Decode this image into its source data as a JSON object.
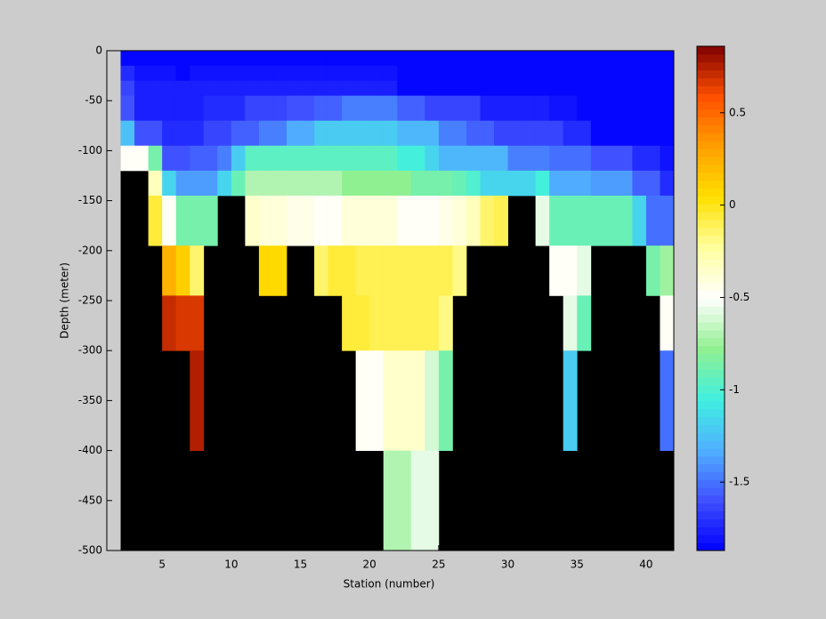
{
  "chart_data": {
    "type": "heatmap",
    "xlabel": "Station (number)",
    "ylabel": "Depth (meter)",
    "x": [
      2,
      3,
      4,
      5,
      6,
      7,
      8,
      9,
      10,
      11,
      12,
      13,
      14,
      15,
      16,
      17,
      18,
      19,
      20,
      21,
      22,
      23,
      24,
      25,
      26,
      27,
      28,
      29,
      30,
      31,
      32,
      33,
      34,
      35,
      36,
      37,
      38,
      39,
      40,
      41,
      42
    ],
    "y": [
      0,
      -15,
      -30,
      -45,
      -70,
      -95,
      -120,
      -145,
      -195,
      -245,
      -300,
      -400,
      -500
    ],
    "values": [
      [
        -1.85,
        -1.85,
        -1.85,
        -1.85,
        -1.85,
        -1.85,
        -1.85,
        -1.85,
        -1.85,
        -1.85,
        -1.85,
        -1.85,
        -1.85,
        -1.85,
        -1.85,
        -1.85,
        -1.85,
        -1.85,
        -1.85,
        -1.85,
        -1.85,
        -1.85,
        -1.85,
        -1.85,
        -1.85,
        -1.85,
        -1.85,
        -1.85,
        -1.85,
        -1.85,
        -1.85,
        -1.85,
        -1.85,
        -1.85,
        -1.85,
        -1.85,
        -1.85,
        -1.85,
        -1.85,
        -1.85
      ],
      [
        -1.7,
        -1.8,
        -1.8,
        -1.8,
        -1.85,
        -1.8,
        -1.8,
        -1.8,
        -1.8,
        -1.8,
        -1.8,
        -1.8,
        -1.8,
        -1.8,
        -1.8,
        -1.8,
        -1.8,
        -1.8,
        -1.8,
        -1.8,
        -1.85,
        -1.85,
        -1.85,
        -1.85,
        -1.85,
        -1.85,
        -1.85,
        -1.85,
        -1.85,
        -1.85,
        -1.85,
        -1.85,
        -1.85,
        -1.85,
        -1.85,
        -1.85,
        -1.85,
        -1.85,
        -1.85,
        -1.85
      ],
      [
        -1.65,
        -1.78,
        -1.78,
        -1.78,
        -1.78,
        -1.78,
        -1.75,
        -1.75,
        -1.75,
        -1.75,
        -1.75,
        -1.75,
        -1.75,
        -1.75,
        -1.75,
        -1.75,
        -1.75,
        -1.75,
        -1.75,
        -1.75,
        -1.85,
        -1.85,
        -1.85,
        -1.85,
        -1.85,
        -1.85,
        -1.85,
        -1.85,
        -1.85,
        -1.85,
        -1.85,
        -1.85,
        -1.85,
        -1.85,
        -1.85,
        -1.85,
        -1.85,
        -1.85,
        -1.85,
        -1.85
      ],
      [
        -1.6,
        -1.75,
        -1.75,
        -1.75,
        -1.75,
        -1.75,
        -1.7,
        -1.7,
        -1.7,
        -1.65,
        -1.65,
        -1.65,
        -1.6,
        -1.6,
        -1.55,
        -1.55,
        -1.45,
        -1.45,
        -1.45,
        -1.45,
        -1.55,
        -1.55,
        -1.65,
        -1.65,
        -1.65,
        -1.65,
        -1.75,
        -1.75,
        -1.75,
        -1.75,
        -1.75,
        -1.8,
        -1.8,
        -1.85,
        -1.85,
        -1.85,
        -1.85,
        -1.85,
        -1.85,
        -1.85
      ],
      [
        -1.25,
        -1.6,
        -1.6,
        -1.7,
        -1.7,
        -1.7,
        -1.65,
        -1.65,
        -1.55,
        -1.55,
        -1.45,
        -1.45,
        -1.35,
        -1.35,
        -1.2,
        -1.2,
        -1.2,
        -1.2,
        -1.2,
        -1.2,
        -1.3,
        -1.3,
        -1.3,
        -1.45,
        -1.45,
        -1.55,
        -1.55,
        -1.65,
        -1.65,
        -1.65,
        -1.65,
        -1.65,
        -1.7,
        -1.7,
        -1.85,
        -1.85,
        -1.85,
        -1.85,
        -1.85,
        -1.85
      ],
      [
        -0.5,
        -0.5,
        -0.85,
        -1.6,
        -1.6,
        -1.55,
        -1.55,
        -1.45,
        -1.2,
        -0.95,
        -0.95,
        -0.95,
        -0.95,
        -0.95,
        -0.95,
        -0.95,
        -0.95,
        -0.95,
        -0.95,
        -0.95,
        -1.05,
        -1.05,
        -1.15,
        -1.3,
        -1.3,
        -1.3,
        -1.3,
        -1.3,
        -1.45,
        -1.45,
        -1.45,
        -1.5,
        -1.5,
        -1.5,
        -1.6,
        -1.6,
        -1.6,
        -1.7,
        -1.7,
        -1.8
      ],
      [
        null,
        null,
        -0.3,
        -1.15,
        -1.4,
        -1.4,
        -1.4,
        -1.15,
        -0.9,
        -0.7,
        -0.7,
        -0.7,
        -0.7,
        -0.7,
        -0.7,
        -0.7,
        -0.8,
        -0.8,
        -0.8,
        -0.8,
        -0.8,
        -0.85,
        -0.85,
        -0.85,
        -0.9,
        -1.0,
        -1.15,
        -1.15,
        -1.15,
        -1.15,
        -1.05,
        -1.35,
        -1.35,
        -1.35,
        -1.4,
        -1.4,
        -1.4,
        -1.55,
        -1.55,
        -1.7
      ],
      [
        null,
        null,
        -0.05,
        -0.5,
        -0.85,
        -0.85,
        -0.85,
        null,
        null,
        -0.35,
        -0.4,
        -0.4,
        -0.45,
        -0.45,
        -0.5,
        -0.5,
        -0.4,
        -0.4,
        -0.4,
        -0.4,
        -0.5,
        -0.5,
        -0.5,
        -0.45,
        -0.4,
        -0.3,
        -0.15,
        -0.1,
        null,
        null,
        -0.55,
        -0.9,
        -0.9,
        -0.9,
        -0.9,
        -0.9,
        -0.9,
        -1.15,
        -1.5,
        -1.5
      ],
      [
        null,
        null,
        null,
        0.25,
        0.1,
        -0.15,
        null,
        null,
        null,
        null,
        0.05,
        0.05,
        null,
        null,
        -0.15,
        -0.05,
        -0.05,
        -0.1,
        -0.1,
        -0.1,
        -0.1,
        -0.1,
        -0.1,
        -0.1,
        -0.2,
        null,
        null,
        null,
        null,
        null,
        null,
        -0.5,
        -0.5,
        -0.55,
        null,
        null,
        null,
        null,
        -0.85,
        -0.75
      ],
      [
        null,
        null,
        null,
        0.7,
        0.65,
        0.65,
        null,
        null,
        null,
        null,
        null,
        null,
        null,
        null,
        null,
        null,
        -0.05,
        -0.05,
        -0.1,
        -0.1,
        -0.1,
        -0.1,
        -0.1,
        -0.2,
        null,
        null,
        null,
        null,
        null,
        null,
        null,
        null,
        -0.55,
        -0.9,
        null,
        null,
        null,
        null,
        null,
        -0.5
      ],
      [
        null,
        null,
        null,
        null,
        null,
        0.75,
        null,
        null,
        null,
        null,
        null,
        null,
        null,
        null,
        null,
        null,
        null,
        -0.5,
        -0.5,
        -0.35,
        -0.35,
        -0.35,
        -0.6,
        -0.85,
        null,
        null,
        null,
        null,
        null,
        null,
        null,
        null,
        -1.2,
        null,
        null,
        null,
        null,
        null,
        null,
        -1.5
      ],
      [
        null,
        null,
        null,
        null,
        null,
        null,
        null,
        null,
        null,
        null,
        null,
        null,
        null,
        null,
        null,
        null,
        null,
        null,
        null,
        -0.7,
        -0.7,
        -0.55,
        -0.55,
        null,
        null,
        null,
        null,
        null,
        null,
        null,
        null,
        null,
        null,
        null,
        null,
        null,
        null,
        null,
        null,
        null
      ]
    ],
    "xlim": [
      1,
      42
    ],
    "xticks": [
      5,
      10,
      15,
      20,
      25,
      30,
      35,
      40
    ],
    "ylim": [
      -500,
      0
    ],
    "yticks": [
      0,
      -50,
      -100,
      -150,
      -200,
      -250,
      -300,
      -350,
      -400,
      -450,
      -500
    ],
    "clim": [
      -1.87,
      0.86
    ],
    "cticks": [
      0.5,
      0,
      -0.5,
      -1,
      -1.5
    ],
    "colormap": [
      "#0000ff",
      "#4050ff",
      "#50b0ff",
      "#40f0e0",
      "#90f090",
      "#ffffff",
      "#ffffa0",
      "#ffe000",
      "#ffa000",
      "#ff5000",
      "#800000"
    ],
    "levels": 64,
    "nan_color": "#000000"
  }
}
